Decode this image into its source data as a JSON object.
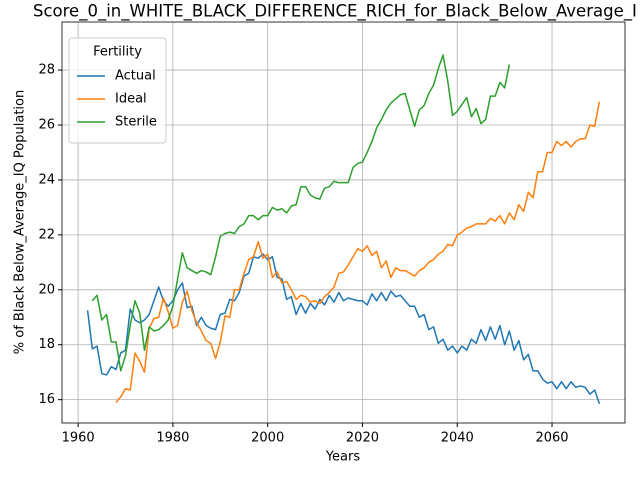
{
  "chart_data": {
    "type": "line",
    "title": "Score_0_in_WHITE_BLACK_DIFFERENCE_RICH_for_Black_Below_Average_I",
    "xlabel": "Years",
    "ylabel": "% of Black Below_Average_IQ Population",
    "legend_title": "Fertility",
    "legend": "upper left",
    "grid": true,
    "xlim": [
      1956.6,
      2075.4
    ],
    "ylim": [
      15.15,
      29.75
    ],
    "xticks": [
      1960,
      1980,
      2000,
      2020,
      2040,
      2060
    ],
    "yticks": [
      16,
      18,
      20,
      22,
      24,
      26,
      28
    ],
    "x": [
      1962,
      1963,
      1964,
      1965,
      1966,
      1967,
      1968,
      1969,
      1970,
      1971,
      1972,
      1973,
      1974,
      1975,
      1976,
      1977,
      1978,
      1979,
      1980,
      1981,
      1982,
      1983,
      1984,
      1985,
      1986,
      1987,
      1988,
      1989,
      1990,
      1991,
      1992,
      1993,
      1994,
      1995,
      1996,
      1997,
      1998,
      1999,
      2000,
      2001,
      2002,
      2003,
      2004,
      2005,
      2006,
      2007,
      2008,
      2009,
      2010,
      2011,
      2012,
      2013,
      2014,
      2015,
      2016,
      2017,
      2018,
      2019,
      2020,
      2021,
      2022,
      2023,
      2024,
      2025,
      2026,
      2027,
      2028,
      2029,
      2030,
      2031,
      2032,
      2033,
      2034,
      2035,
      2036,
      2037,
      2038,
      2039,
      2040,
      2041,
      2042,
      2043,
      2044,
      2045,
      2046,
      2047,
      2048,
      2049,
      2050,
      2051,
      2052,
      2053,
      2054,
      2055,
      2056,
      2057,
      2058,
      2059,
      2060,
      2061,
      2062,
      2063,
      2064,
      2065,
      2066,
      2067,
      2068,
      2069,
      2070
    ],
    "series": [
      {
        "name": "Actual",
        "color": "#1f77b4",
        "values": [
          19.25,
          17.85,
          17.95,
          16.95,
          16.9,
          17.2,
          17.1,
          17.7,
          17.8,
          19.3,
          18.9,
          18.8,
          18.9,
          19.1,
          19.6,
          20.1,
          19.6,
          19.4,
          19.6,
          20.0,
          20.25,
          19.35,
          19.4,
          18.7,
          19.0,
          18.7,
          18.6,
          18.55,
          19.1,
          19.15,
          19.65,
          19.6,
          19.9,
          20.5,
          20.6,
          21.2,
          21.15,
          21.3,
          21.1,
          21.2,
          20.45,
          20.4,
          19.65,
          19.75,
          19.1,
          19.5,
          19.15,
          19.5,
          19.3,
          19.65,
          19.45,
          19.8,
          19.55,
          19.9,
          19.6,
          19.7,
          19.65,
          19.6,
          19.6,
          19.45,
          19.85,
          19.6,
          19.9,
          19.6,
          19.95,
          19.75,
          19.8,
          19.6,
          19.4,
          19.4,
          19.0,
          19.1,
          18.55,
          18.65,
          18.05,
          18.2,
          17.8,
          17.95,
          17.7,
          17.95,
          17.8,
          18.2,
          18.05,
          18.55,
          18.15,
          18.65,
          18.2,
          18.7,
          18.0,
          18.5,
          17.8,
          18.15,
          17.45,
          17.65,
          17.05,
          17.05,
          16.75,
          16.6,
          16.65,
          16.4,
          16.65,
          16.4,
          16.65,
          16.45,
          16.5,
          16.45,
          16.2,
          16.35,
          15.85
        ]
      },
      {
        "name": "Ideal",
        "color": "#ff7f0e",
        "values": [
          null,
          null,
          null,
          null,
          null,
          null,
          15.9,
          16.1,
          16.4,
          16.35,
          17.7,
          17.4,
          17.0,
          18.6,
          18.95,
          19.0,
          19.7,
          19.2,
          18.6,
          18.7,
          19.55,
          19.95,
          19.25,
          18.8,
          18.5,
          18.15,
          18.05,
          17.5,
          18.1,
          19.05,
          19.0,
          20.0,
          20.0,
          20.6,
          21.1,
          21.2,
          21.75,
          21.15,
          21.3,
          20.45,
          20.65,
          20.25,
          20.3,
          20.0,
          19.65,
          19.8,
          19.75,
          19.55,
          19.6,
          19.5,
          19.75,
          19.9,
          20.1,
          20.6,
          20.65,
          20.9,
          21.2,
          21.5,
          21.4,
          21.6,
          21.25,
          21.4,
          20.8,
          21.05,
          20.45,
          20.8,
          20.7,
          20.7,
          20.6,
          20.5,
          20.7,
          20.8,
          21.0,
          21.1,
          21.3,
          21.4,
          21.65,
          21.6,
          22.0,
          22.1,
          22.25,
          22.3,
          22.4,
          22.4,
          22.4,
          22.6,
          22.5,
          22.7,
          22.4,
          22.8,
          22.55,
          23.1,
          22.85,
          23.55,
          23.35,
          24.3,
          24.3,
          25.0,
          25.0,
          25.4,
          25.25,
          25.4,
          25.2,
          25.4,
          25.5,
          25.5,
          26.0,
          25.95,
          26.85
        ]
      },
      {
        "name": "Sterile",
        "color": "#2ca02c",
        "values": [
          null,
          19.6,
          19.8,
          18.9,
          19.1,
          18.1,
          18.1,
          17.05,
          17.6,
          18.7,
          19.6,
          19.15,
          17.8,
          18.65,
          18.5,
          18.55,
          18.7,
          18.9,
          19.4,
          20.4,
          21.35,
          20.8,
          20.7,
          20.6,
          20.7,
          20.65,
          20.55,
          21.2,
          21.95,
          22.05,
          22.1,
          22.05,
          22.3,
          22.4,
          22.7,
          22.7,
          22.55,
          22.7,
          22.7,
          23.0,
          22.9,
          22.95,
          22.8,
          23.05,
          23.1,
          23.75,
          23.75,
          23.45,
          23.35,
          23.3,
          23.7,
          23.75,
          23.95,
          23.9,
          23.9,
          23.9,
          24.45,
          24.6,
          24.65,
          25.0,
          25.4,
          25.9,
          26.2,
          26.55,
          26.8,
          26.95,
          27.1,
          27.15,
          26.55,
          25.95,
          26.55,
          26.7,
          27.15,
          27.45,
          28.05,
          28.55,
          27.6,
          26.35,
          26.5,
          26.75,
          27.0,
          26.3,
          26.6,
          26.05,
          26.2,
          27.05,
          27.05,
          27.55,
          27.35,
          28.2,
          null,
          null,
          null,
          null,
          null,
          null,
          null,
          null,
          null,
          null,
          null,
          null,
          null,
          null,
          null,
          null,
          null,
          null,
          null
        ]
      }
    ]
  }
}
